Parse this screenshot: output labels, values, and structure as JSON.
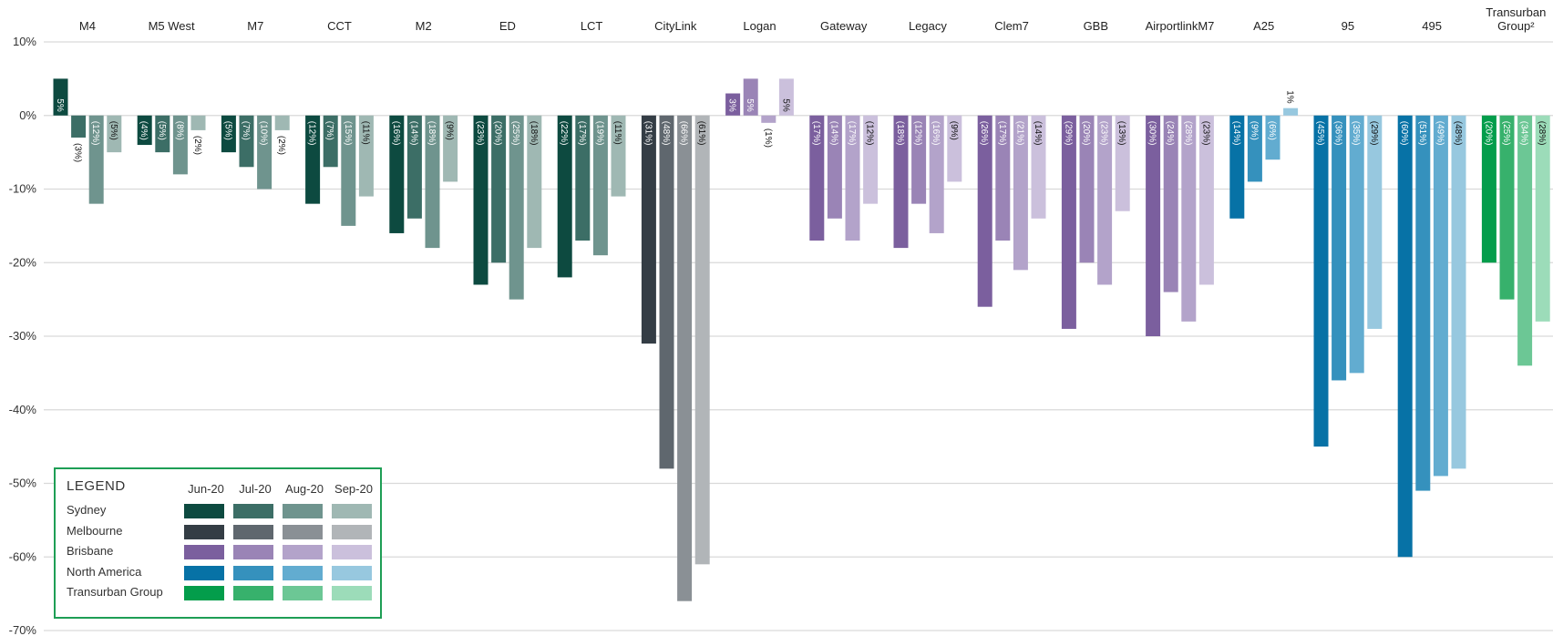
{
  "chart_data": {
    "type": "bar",
    "ylim": [
      -70,
      10
    ],
    "yticks": [
      10,
      0,
      -10,
      -20,
      -30,
      -40,
      -50,
      -60,
      -70
    ],
    "ytick_labels": [
      "10%",
      "0%",
      "-10%",
      "-20%",
      "-30%",
      "-40%",
      "-50%",
      "-60%",
      "-70%"
    ],
    "grid": true,
    "categories": [
      "M4",
      "M5 West",
      "M7",
      "CCT",
      "M2",
      "ED",
      "LCT",
      "CityLink",
      "Logan",
      "Gateway",
      "Legacy",
      "Clem7",
      "GBB",
      "AirportlinkM7",
      "A25",
      "95",
      "495",
      "Transurban Group"
    ],
    "category_labels": [
      [
        "M4"
      ],
      [
        "M5 West"
      ],
      [
        "M7"
      ],
      [
        "CCT"
      ],
      [
        "M2"
      ],
      [
        "ED"
      ],
      [
        "LCT"
      ],
      [
        "CityLink"
      ],
      [
        "Logan"
      ],
      [
        "Gateway"
      ],
      [
        "Legacy"
      ],
      [
        "Clem7"
      ],
      [
        "GBB"
      ],
      [
        "AirportlinkM7"
      ],
      [
        "A25"
      ],
      [
        "95"
      ],
      [
        "495"
      ],
      [
        "Transurban",
        "Group²"
      ]
    ],
    "category_region": [
      "Sydney",
      "Sydney",
      "Sydney",
      "Sydney",
      "Sydney",
      "Sydney",
      "Sydney",
      "Melbourne",
      "Brisbane",
      "Brisbane",
      "Brisbane",
      "Brisbane",
      "Brisbane",
      "Brisbane",
      "North America",
      "North America",
      "North America",
      "Transurban Group"
    ],
    "series": [
      {
        "name": "Jun-20",
        "values": [
          5,
          -4,
          -5,
          -12,
          -16,
          -23,
          -22,
          -31,
          3,
          -17,
          -18,
          -26,
          -29,
          -30,
          -14,
          -45,
          -60,
          -20
        ],
        "labels": [
          "5%",
          "(4%)",
          "(5%)",
          "(12%)",
          "(16%)",
          "(23%)",
          "(22%)",
          "(31%)",
          "3%",
          "(17%)",
          "(18%)",
          "(26%)",
          "(29%)",
          "(30%)",
          "(14%)",
          "(45%)",
          "(60%)",
          "(20%)"
        ]
      },
      {
        "name": "Jul-20",
        "values": [
          -3,
          -5,
          -7,
          -7,
          -14,
          -20,
          -17,
          -48,
          5,
          -14,
          -12,
          -17,
          -20,
          -24,
          -9,
          -36,
          -51,
          -25
        ],
        "labels": [
          "(3%)",
          "(5%)",
          "(7%)",
          "(7%)",
          "(14%)",
          "(20%)",
          "(17%)",
          "(48%)",
          "5%",
          "(14%)",
          "(12%)",
          "(17%)",
          "(20%)",
          "(24%)",
          "(9%)",
          "(36%)",
          "(51%)",
          "(25%)"
        ]
      },
      {
        "name": "Aug-20",
        "values": [
          -12,
          -8,
          -10,
          -15,
          -18,
          -25,
          -19,
          -66,
          -1,
          -17,
          -16,
          -21,
          -23,
          -28,
          -6,
          -35,
          -49,
          -34
        ],
        "labels": [
          "(12%)",
          "(8%)",
          "(10%)",
          "(15%)",
          "(18%)",
          "(25%)",
          "(19%)",
          "(66%)",
          "(1%)",
          "(17%)",
          "(16%)",
          "(21%)",
          "(23%)",
          "(28%)",
          "(6%)",
          "(35%)",
          "(49%)",
          "(34%)"
        ]
      },
      {
        "name": "Sep-20",
        "values": [
          -5,
          -2,
          -2,
          -11,
          -9,
          -18,
          -11,
          -61,
          5,
          -12,
          -9,
          -14,
          -13,
          -23,
          1,
          -29,
          -48,
          -28
        ],
        "labels": [
          "(5%)",
          "(2%)",
          "(2%)",
          "(11%)",
          "(9%)",
          "(18%)",
          "(11%)",
          "(61%)",
          "5%",
          "(12%)",
          "(9%)",
          "(14%)",
          "(13%)",
          "(23%)",
          "1%",
          "(29%)",
          "(48%)",
          "(28%)"
        ]
      }
    ],
    "region_colors": {
      "Sydney": [
        "#0d4a40",
        "#3c6e66",
        "#6f948e",
        "#9fb8b3"
      ],
      "Melbourne": [
        "#343d45",
        "#5f676e",
        "#8a9095",
        "#b1b5b8"
      ],
      "Brisbane": [
        "#7b5f9e",
        "#9a84b6",
        "#b3a3ca",
        "#cbc0dc"
      ],
      "North America": [
        "#0772a6",
        "#3591bd",
        "#62acd0",
        "#97c8df"
      ],
      "Transurban Group": [
        "#039d4b",
        "#37b16c",
        "#6cc795",
        "#9cdcb9"
      ]
    },
    "legend": {
      "title": "LEGEND",
      "placement": "bottom-left",
      "months": [
        "Jun-20",
        "Jul-20",
        "Aug-20",
        "Sep-20"
      ],
      "regions": [
        "Sydney",
        "Melbourne",
        "Brisbane",
        "North America",
        "Transurban Group"
      ]
    }
  }
}
